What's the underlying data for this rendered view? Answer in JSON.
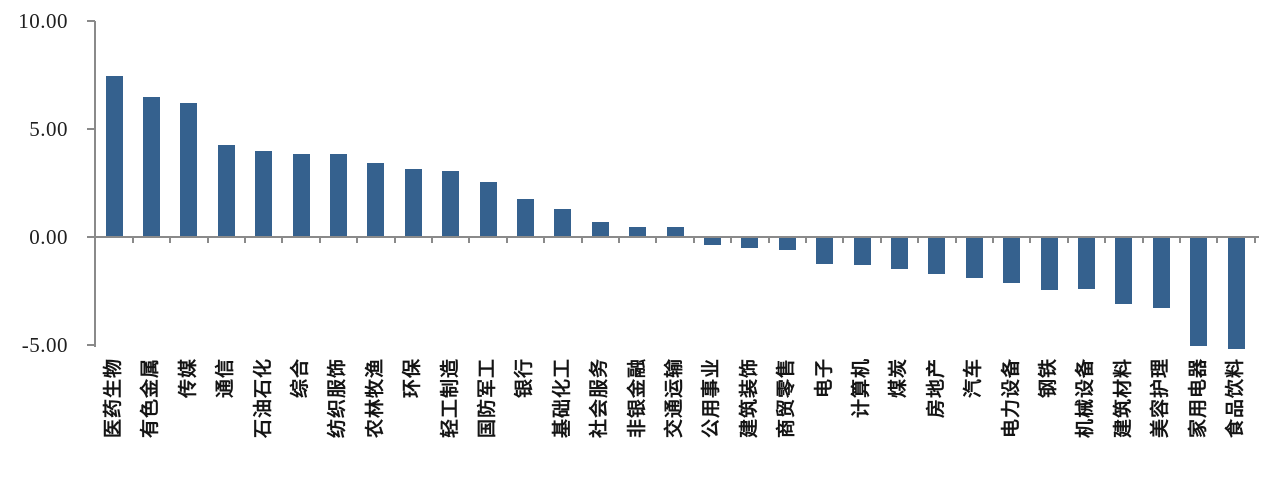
{
  "chart_data": {
    "type": "bar",
    "title": "",
    "xlabel": "",
    "ylabel": "",
    "legend": "none",
    "grid": false,
    "background": "#FFFFFF",
    "bar_color": "#35618E",
    "axis_color": "#8A8A8A",
    "tick_label_color": "#1F1F1F",
    "category_label_color": "#141414",
    "ylim": [
      -5.5,
      10
    ],
    "yticks": [
      {
        "value": 10,
        "label": "10.00"
      },
      {
        "value": 5,
        "label": "5.00"
      },
      {
        "value": 0,
        "label": "0.00"
      },
      {
        "value": -5,
        "label": "-5.00"
      }
    ],
    "categories": [
      "医药生物",
      "有色金属",
      "传媒",
      "通信",
      "石油石化",
      "综合",
      "纺织服饰",
      "农林牧渔",
      "环保",
      "轻工制造",
      "国防军工",
      "银行",
      "基础化工",
      "社会服务",
      "非银金融",
      "交通运输",
      "公用事业",
      "建筑装饰",
      "商贸零售",
      "电子",
      "计算机",
      "煤炭",
      "房地产",
      "汽车",
      "电力设备",
      "钢铁",
      "机械设备",
      "建筑材料",
      "美容护理",
      "家用电器",
      "食品饮料"
    ],
    "values": [
      7.45,
      6.5,
      6.2,
      4.25,
      4.0,
      3.85,
      3.85,
      3.45,
      3.15,
      3.05,
      2.55,
      1.75,
      1.3,
      0.7,
      0.45,
      0.45,
      -0.35,
      -0.5,
      -0.6,
      -1.25,
      -1.3,
      -1.5,
      -1.7,
      -1.9,
      -2.15,
      -2.45,
      -2.4,
      -3.1,
      -3.3,
      -5.05,
      -5.2
    ]
  }
}
